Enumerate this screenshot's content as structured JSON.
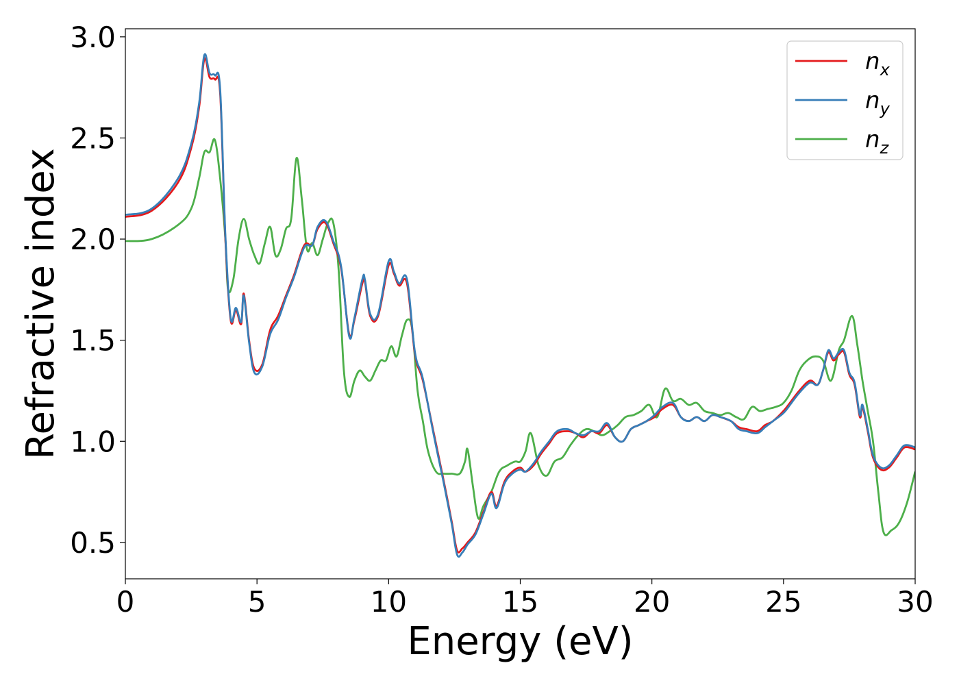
{
  "chart_data": {
    "type": "line",
    "xlabel": "Energy (eV)",
    "ylabel": "Refractive index",
    "xlim": [
      0,
      30
    ],
    "ylim": [
      0.32,
      3.04
    ],
    "xticks": [
      0,
      5,
      10,
      15,
      20,
      25,
      30
    ],
    "xtick_labels": [
      "0",
      "5",
      "10",
      "15",
      "20",
      "25",
      "30"
    ],
    "yticks": [
      0.5,
      1.0,
      1.5,
      2.0,
      2.5,
      3.0
    ],
    "ytick_labels": [
      "0.5",
      "1.0",
      "1.5",
      "2.0",
      "2.5",
      "3.0"
    ],
    "grid": false,
    "legend_position": "top-right",
    "series": [
      {
        "name": "n_x",
        "label_main": "n",
        "label_sub": "x",
        "color": "#e41a1c",
        "x": [
          0,
          1,
          2,
          2.5,
          2.8,
          3.0,
          3.2,
          3.4,
          3.6,
          3.8,
          4.0,
          4.2,
          4.4,
          4.5,
          4.7,
          4.9,
          5.2,
          5.5,
          5.8,
          6.1,
          6.4,
          6.8,
          7.1,
          7.3,
          7.6,
          7.9,
          8.2,
          8.5,
          8.7,
          9.0,
          9.1,
          9.3,
          9.6,
          10.0,
          10.2,
          10.4,
          10.7,
          11.0,
          11.3,
          11.7,
          12.1,
          12.4,
          12.6,
          12.8,
          13.0,
          13.3,
          13.6,
          13.9,
          14.1,
          14.4,
          14.7,
          15.0,
          15.2,
          15.5,
          15.8,
          16.1,
          16.4,
          16.8,
          17.1,
          17.4,
          17.7,
          18.0,
          18.3,
          18.6,
          18.9,
          19.2,
          19.5,
          19.8,
          20.1,
          20.4,
          20.8,
          21.1,
          21.4,
          21.7,
          22.0,
          22.3,
          22.6,
          23.0,
          23.3,
          23.6,
          24.0,
          24.3,
          24.6,
          25.0,
          25.3,
          25.6,
          26.0,
          26.3,
          26.5,
          26.7,
          26.9,
          27.1,
          27.3,
          27.5,
          27.7,
          27.9,
          28.0,
          28.2,
          28.4,
          28.7,
          29.0,
          29.3,
          29.6,
          30.0
        ],
        "y": [
          2.11,
          2.14,
          2.28,
          2.45,
          2.65,
          2.89,
          2.8,
          2.79,
          2.72,
          2.0,
          1.6,
          1.65,
          1.58,
          1.73,
          1.5,
          1.36,
          1.38,
          1.55,
          1.62,
          1.72,
          1.82,
          1.97,
          1.97,
          2.05,
          2.08,
          1.98,
          1.85,
          1.53,
          1.6,
          1.78,
          1.79,
          1.62,
          1.62,
          1.87,
          1.83,
          1.77,
          1.78,
          1.43,
          1.3,
          1.05,
          0.8,
          0.6,
          0.46,
          0.47,
          0.5,
          0.55,
          0.65,
          0.75,
          0.68,
          0.8,
          0.85,
          0.87,
          0.85,
          0.88,
          0.94,
          0.99,
          1.04,
          1.05,
          1.04,
          1.02,
          1.05,
          1.04,
          1.08,
          1.02,
          1.0,
          1.06,
          1.08,
          1.1,
          1.12,
          1.16,
          1.18,
          1.12,
          1.1,
          1.12,
          1.1,
          1.13,
          1.12,
          1.1,
          1.07,
          1.06,
          1.05,
          1.08,
          1.1,
          1.15,
          1.2,
          1.25,
          1.3,
          1.28,
          1.35,
          1.44,
          1.4,
          1.43,
          1.44,
          1.33,
          1.28,
          1.12,
          1.17,
          1.05,
          0.92,
          0.86,
          0.87,
          0.92,
          0.97,
          0.96
        ]
      },
      {
        "name": "n_y",
        "label_main": "n",
        "label_sub": "y",
        "color": "#377eb8",
        "x": [
          0,
          1,
          2,
          2.5,
          2.8,
          3.0,
          3.2,
          3.4,
          3.6,
          3.8,
          4.0,
          4.2,
          4.4,
          4.5,
          4.7,
          4.9,
          5.2,
          5.5,
          5.8,
          6.1,
          6.4,
          6.8,
          7.1,
          7.3,
          7.6,
          7.9,
          8.2,
          8.5,
          8.7,
          9.0,
          9.1,
          9.3,
          9.6,
          10.0,
          10.2,
          10.4,
          10.7,
          11.0,
          11.3,
          11.7,
          12.1,
          12.4,
          12.6,
          12.8,
          13.0,
          13.3,
          13.6,
          13.9,
          14.1,
          14.4,
          14.7,
          15.0,
          15.2,
          15.5,
          15.8,
          16.1,
          16.4,
          16.8,
          17.1,
          17.4,
          17.7,
          18.0,
          18.3,
          18.6,
          18.9,
          19.2,
          19.5,
          19.8,
          20.1,
          20.4,
          20.8,
          21.1,
          21.4,
          21.7,
          22.0,
          22.3,
          22.6,
          23.0,
          23.3,
          23.6,
          24.0,
          24.3,
          24.6,
          25.0,
          25.3,
          25.6,
          26.0,
          26.3,
          26.5,
          26.7,
          26.9,
          27.1,
          27.3,
          27.5,
          27.7,
          27.9,
          28.0,
          28.2,
          28.4,
          28.7,
          29.0,
          29.3,
          29.6,
          30.0
        ],
        "y": [
          2.12,
          2.15,
          2.3,
          2.47,
          2.67,
          2.91,
          2.82,
          2.81,
          2.74,
          2.02,
          1.61,
          1.66,
          1.59,
          1.72,
          1.49,
          1.34,
          1.37,
          1.53,
          1.6,
          1.71,
          1.81,
          1.96,
          1.97,
          2.06,
          2.09,
          1.99,
          1.86,
          1.52,
          1.61,
          1.8,
          1.8,
          1.63,
          1.63,
          1.89,
          1.84,
          1.78,
          1.8,
          1.44,
          1.31,
          1.04,
          0.79,
          0.59,
          0.44,
          0.45,
          0.49,
          0.54,
          0.64,
          0.74,
          0.67,
          0.79,
          0.84,
          0.86,
          0.85,
          0.89,
          0.95,
          1.0,
          1.05,
          1.06,
          1.04,
          1.03,
          1.05,
          1.05,
          1.09,
          1.02,
          1.0,
          1.06,
          1.08,
          1.1,
          1.13,
          1.17,
          1.19,
          1.12,
          1.1,
          1.12,
          1.1,
          1.13,
          1.12,
          1.1,
          1.06,
          1.05,
          1.04,
          1.07,
          1.1,
          1.14,
          1.19,
          1.24,
          1.29,
          1.28,
          1.35,
          1.45,
          1.41,
          1.44,
          1.45,
          1.34,
          1.29,
          1.13,
          1.18,
          1.06,
          0.93,
          0.87,
          0.88,
          0.93,
          0.98,
          0.97
        ]
      },
      {
        "name": "n_z",
        "label_main": "n",
        "label_sub": "z",
        "color": "#4daf4a",
        "x": [
          0,
          1,
          2,
          2.5,
          2.8,
          3.0,
          3.2,
          3.4,
          3.6,
          3.8,
          3.9,
          4.1,
          4.3,
          4.5,
          4.7,
          4.9,
          5.1,
          5.3,
          5.5,
          5.7,
          5.9,
          6.1,
          6.3,
          6.5,
          6.7,
          6.9,
          7.1,
          7.3,
          7.5,
          7.7,
          7.9,
          8.1,
          8.3,
          8.5,
          8.7,
          8.9,
          9.1,
          9.3,
          9.5,
          9.7,
          9.9,
          10.1,
          10.3,
          10.5,
          10.7,
          10.9,
          11.1,
          11.3,
          11.5,
          11.8,
          12.1,
          12.4,
          12.7,
          12.9,
          13.0,
          13.2,
          13.4,
          13.6,
          13.9,
          14.2,
          14.5,
          14.8,
          15.0,
          15.2,
          15.4,
          15.7,
          16.0,
          16.3,
          16.6,
          16.9,
          17.2,
          17.5,
          17.8,
          18.1,
          18.4,
          18.7,
          19.0,
          19.3,
          19.6,
          19.9,
          20.2,
          20.5,
          20.8,
          21.1,
          21.4,
          21.7,
          22.0,
          22.3,
          22.6,
          22.9,
          23.2,
          23.5,
          23.8,
          24.1,
          24.4,
          24.7,
          25.0,
          25.3,
          25.6,
          25.9,
          26.2,
          26.5,
          26.8,
          27.1,
          27.3,
          27.6,
          27.8,
          28.0,
          28.2,
          28.4,
          28.6,
          28.8,
          29.1,
          29.4,
          29.7,
          30.0
        ],
        "y": [
          1.99,
          2.0,
          2.07,
          2.15,
          2.3,
          2.43,
          2.43,
          2.49,
          2.3,
          2.0,
          1.75,
          1.8,
          2.0,
          2.1,
          2.0,
          1.92,
          1.88,
          1.98,
          2.06,
          1.92,
          1.95,
          2.05,
          2.1,
          2.4,
          2.2,
          1.95,
          1.98,
          1.92,
          2.0,
          2.08,
          2.08,
          1.85,
          1.35,
          1.22,
          1.3,
          1.35,
          1.32,
          1.3,
          1.35,
          1.4,
          1.4,
          1.47,
          1.42,
          1.52,
          1.6,
          1.55,
          1.25,
          1.1,
          0.95,
          0.85,
          0.84,
          0.84,
          0.84,
          0.9,
          0.96,
          0.78,
          0.62,
          0.68,
          0.75,
          0.85,
          0.88,
          0.9,
          0.9,
          0.95,
          1.04,
          0.88,
          0.83,
          0.9,
          0.92,
          0.98,
          1.03,
          1.06,
          1.05,
          1.03,
          1.05,
          1.08,
          1.12,
          1.13,
          1.15,
          1.18,
          1.12,
          1.26,
          1.2,
          1.21,
          1.18,
          1.19,
          1.15,
          1.14,
          1.13,
          1.14,
          1.12,
          1.11,
          1.17,
          1.15,
          1.16,
          1.17,
          1.19,
          1.25,
          1.35,
          1.4,
          1.42,
          1.4,
          1.3,
          1.45,
          1.5,
          1.62,
          1.48,
          1.3,
          1.15,
          1.0,
          0.75,
          0.55,
          0.56,
          0.6,
          0.7,
          0.85
        ]
      }
    ]
  }
}
